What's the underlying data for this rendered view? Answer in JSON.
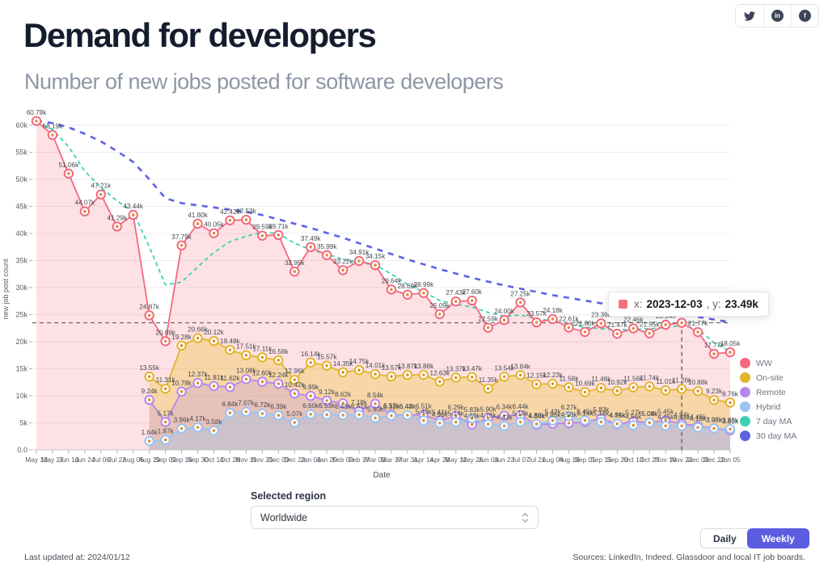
{
  "header": {
    "title": "Demand for developers",
    "subtitle": "Number of new jobs posted for software developers",
    "social_icons": [
      "twitter-icon",
      "linkedin-icon",
      "facebook-icon"
    ],
    "linkedin_glyph": "in",
    "facebook_glyph": "f"
  },
  "tooltip": {
    "x_prefix": "x:",
    "x_value": "2023-12-03",
    "y_prefix": ", y:",
    "y_value": "23.49k",
    "marker_color": "#f4717f"
  },
  "controls": {
    "region_label": "Selected region",
    "region_value": "Worldwide",
    "daily_label": "Daily",
    "weekly_label": "Weekly",
    "active_toggle": "Weekly",
    "weekly_color": "#5b5ce0"
  },
  "footer": {
    "last_updated": "Last updated at: 2024/01/12",
    "sources": "Sources: LinkedIn, Indeed. Glassdoor and local IT job boards."
  },
  "chart_data": {
    "type": "line",
    "xlabel": "Date",
    "ylabel": "new job post count",
    "ylim": [
      0,
      60
    ],
    "grid": true,
    "legend_position": "right",
    "y_ticks": [
      "0.0",
      "5k",
      "10k",
      "15k",
      "20k",
      "25k",
      "30k",
      "35k",
      "40k",
      "45k",
      "50k",
      "55k",
      "60k"
    ],
    "categories": [
      "May 13",
      "May 27",
      "Jun 10",
      "Jun 24",
      "Jul 08",
      "Jul 22",
      "Aug 05",
      "Aug 19",
      "Sep 02",
      "Sep 16",
      "Sep 30",
      "Oct 14",
      "Oct 28",
      "Nov 11",
      "Nov 25",
      "Dec 09",
      "Dec 23",
      "Jan 06",
      "Jan 20",
      "Feb 03",
      "Feb 17",
      "Mar 03",
      "Mar 17",
      "Mar 31",
      "Apr 14",
      "Apr 28",
      "May 12",
      "May 26",
      "Jun 09",
      "Jun 23",
      "Jul 07",
      "Jul 21",
      "Aug 04",
      "Aug 18",
      "Sep 01",
      "Sep 15",
      "Sep 29",
      "Oct 13",
      "Oct 27",
      "Nov 10",
      "Nov 24",
      "Dec 08",
      "Dec 22",
      "Jan 05"
    ],
    "crosshair": {
      "x_index": 40,
      "y_value": 23.49
    },
    "series": [
      {
        "name": "WW",
        "color": "#f3697e",
        "fill": "rgba(243,105,126,0.20)",
        "dash": null,
        "markers": true,
        "labels": true,
        "values": [
          60.78,
          58.19,
          51.06,
          44.07,
          47.21,
          41.29,
          43.44,
          24.87,
          20.09,
          37.79,
          41.8,
          40.05,
          42.42,
          42.53,
          39.59,
          39.71,
          32.95,
          37.49,
          35.99,
          33.22,
          34.91,
          34.15,
          29.64,
          28.69,
          28.99,
          25.09,
          27.43,
          27.6,
          22.59,
          24.0,
          27.25,
          23.57,
          24.18,
          22.61,
          21.8,
          23.39,
          21.47,
          22.46,
          21.55,
          23.14,
          23.49,
          21.77,
          17.77,
          18.05
        ]
      },
      {
        "name": "On-site",
        "color": "#e2b52c",
        "fill": "rgba(238,196,65,0.38)",
        "dash": null,
        "markers": true,
        "labels": true,
        "values": [
          null,
          null,
          null,
          null,
          null,
          null,
          null,
          13.55,
          11.31,
          19.28,
          20.66,
          20.12,
          18.48,
          17.51,
          17.11,
          16.58,
          12.96,
          16.14,
          15.57,
          14.35,
          14.75,
          14.01,
          13.57,
          13.87,
          13.88,
          12.63,
          13.37,
          13.47,
          11.35,
          13.54,
          13.84,
          12.15,
          12.23,
          11.58,
          10.69,
          11.46,
          10.92,
          11.56,
          11.74,
          11.01,
          11.26,
          10.88,
          9.23,
          8.76
        ]
      },
      {
        "name": "Remote",
        "color": "#b488ee",
        "fill": "rgba(180,136,238,0.25)",
        "dash": null,
        "markers": true,
        "labels": true,
        "values": [
          null,
          null,
          null,
          null,
          null,
          null,
          null,
          9.24,
          5.17,
          10.78,
          12.37,
          11.81,
          11.62,
          13.08,
          12.6,
          12.24,
          10.42,
          9.99,
          9.12,
          8.62,
          7.18,
          8.54,
          6.53,
          6.43,
          6.51,
          5.41,
          6.29,
          4.69,
          5.9,
          6.34,
          6.44,
          4.64,
          4.85,
          4.96,
          5.14,
          5.83,
          4.75,
          5.27,
          5.09,
          5.45,
          4.84,
          4.45,
          3.98,
          3.62
        ]
      },
      {
        "name": "Hybrid",
        "color": "#9cc3f0",
        "fill": "rgba(156,195,240,0.35)",
        "dash": null,
        "markers": true,
        "labels": true,
        "values": [
          null,
          null,
          null,
          null,
          null,
          null,
          null,
          1.64,
          1.87,
          3.96,
          4.17,
          3.58,
          6.84,
          7.07,
          6.72,
          6.39,
          5.07,
          6.6,
          6.53,
          6.43,
          6.51,
          5.9,
          6.32,
          6.44,
          5.43,
          4.96,
          5.14,
          5.83,
          4.76,
          4.43,
          5.16,
          4.8,
          5.42,
          6.27,
          5.45,
          5.18,
          4.84,
          4.56,
          5.04,
          4.45,
          4.44,
          4.16,
          3.98,
          3.86
        ]
      },
      {
        "name": "7 day MA",
        "color": "#3ed0b0",
        "fill": null,
        "dash": "5 4",
        "markers": false,
        "labels": false,
        "values": [
          60.5,
          59.2,
          56.0,
          51.5,
          48.5,
          46.0,
          44.0,
          37.5,
          30.5,
          31.0,
          33.8,
          36.5,
          38.5,
          39.5,
          40.2,
          40.0,
          38.2,
          37.0,
          36.2,
          35.2,
          34.6,
          34.2,
          32.5,
          30.6,
          29.2,
          27.6,
          26.9,
          26.4,
          25.4,
          24.7,
          24.9,
          24.3,
          23.8,
          23.2,
          22.7,
          22.4,
          22.2,
          22.3,
          22.4,
          22.6,
          23.0,
          22.4,
          19.8,
          18.2
        ]
      },
      {
        "name": "30 day MA",
        "color": "#5c63e1",
        "fill": null,
        "dash": "7 7",
        "markers": false,
        "labels": false,
        "values": [
          60.8,
          60.4,
          59.6,
          58.4,
          57.0,
          55.2,
          53.2,
          50.0,
          46.5,
          45.6,
          45.2,
          44.8,
          44.4,
          44.0,
          43.4,
          42.6,
          41.8,
          41.0,
          40.1,
          39.2,
          38.2,
          37.2,
          36.2,
          35.2,
          34.3,
          33.4,
          32.6,
          31.8,
          31.1,
          30.4,
          29.8,
          29.2,
          28.6,
          28.1,
          27.6,
          27.1,
          26.7,
          26.3,
          25.9,
          25.5,
          25.1,
          24.6,
          24.1,
          23.6
        ]
      }
    ]
  }
}
